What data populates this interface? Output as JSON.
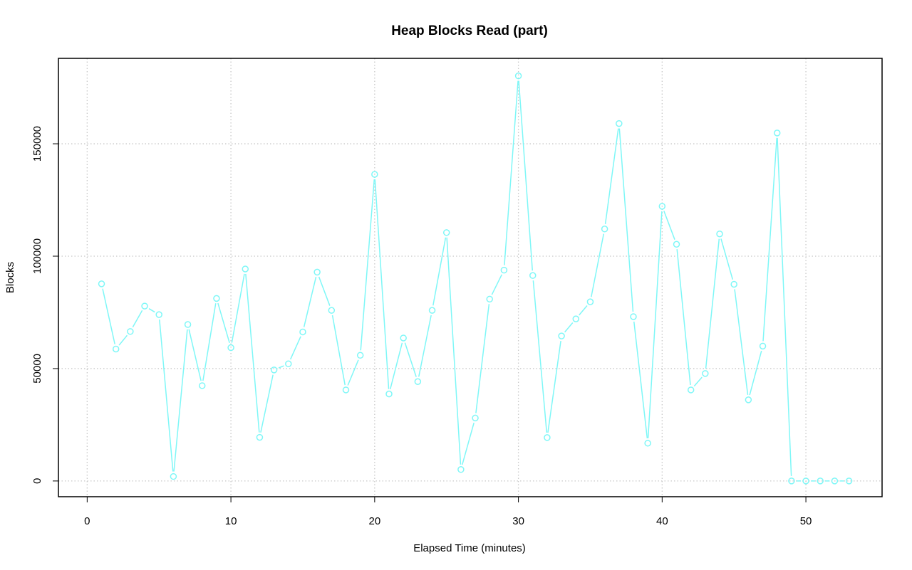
{
  "chart_data": {
    "type": "line",
    "title": "Heap Blocks Read (part)",
    "xlabel": "Elapsed Time (minutes)",
    "ylabel": "Blocks",
    "xlim": [
      -2,
      55.3
    ],
    "ylim": [
      -7000,
      188000
    ],
    "x_ticks": [
      0,
      10,
      20,
      30,
      40,
      50
    ],
    "y_ticks": [
      0,
      50000,
      100000,
      150000
    ],
    "grid": true,
    "grid_style": "dotted",
    "series_color": "#7ff7f7",
    "marker": "open-circle",
    "x": [
      1,
      2,
      3,
      4,
      5,
      6,
      7,
      8,
      9,
      10,
      11,
      12,
      13,
      14,
      15,
      16,
      17,
      18,
      19,
      20,
      21,
      22,
      23,
      24,
      25,
      26,
      27,
      28,
      29,
      30,
      31,
      32,
      33,
      34,
      35,
      36,
      37,
      38,
      39,
      40,
      41,
      42,
      43,
      44,
      45,
      46,
      47,
      48,
      49,
      50,
      51,
      52,
      53
    ],
    "values": [
      87700,
      58700,
      66500,
      77800,
      74000,
      2000,
      69600,
      42400,
      81200,
      59300,
      94300,
      19400,
      49400,
      52100,
      66300,
      92900,
      75900,
      40500,
      55900,
      136400,
      38700,
      63600,
      44200,
      75900,
      110500,
      5100,
      28000,
      80900,
      93800,
      180200,
      91400,
      19300,
      64500,
      72100,
      79700,
      112100,
      159000,
      73100,
      16800,
      122200,
      105300,
      40500,
      47800,
      109900,
      87500,
      36100,
      60000,
      154800,
      0,
      0,
      0,
      0,
      0
    ]
  }
}
